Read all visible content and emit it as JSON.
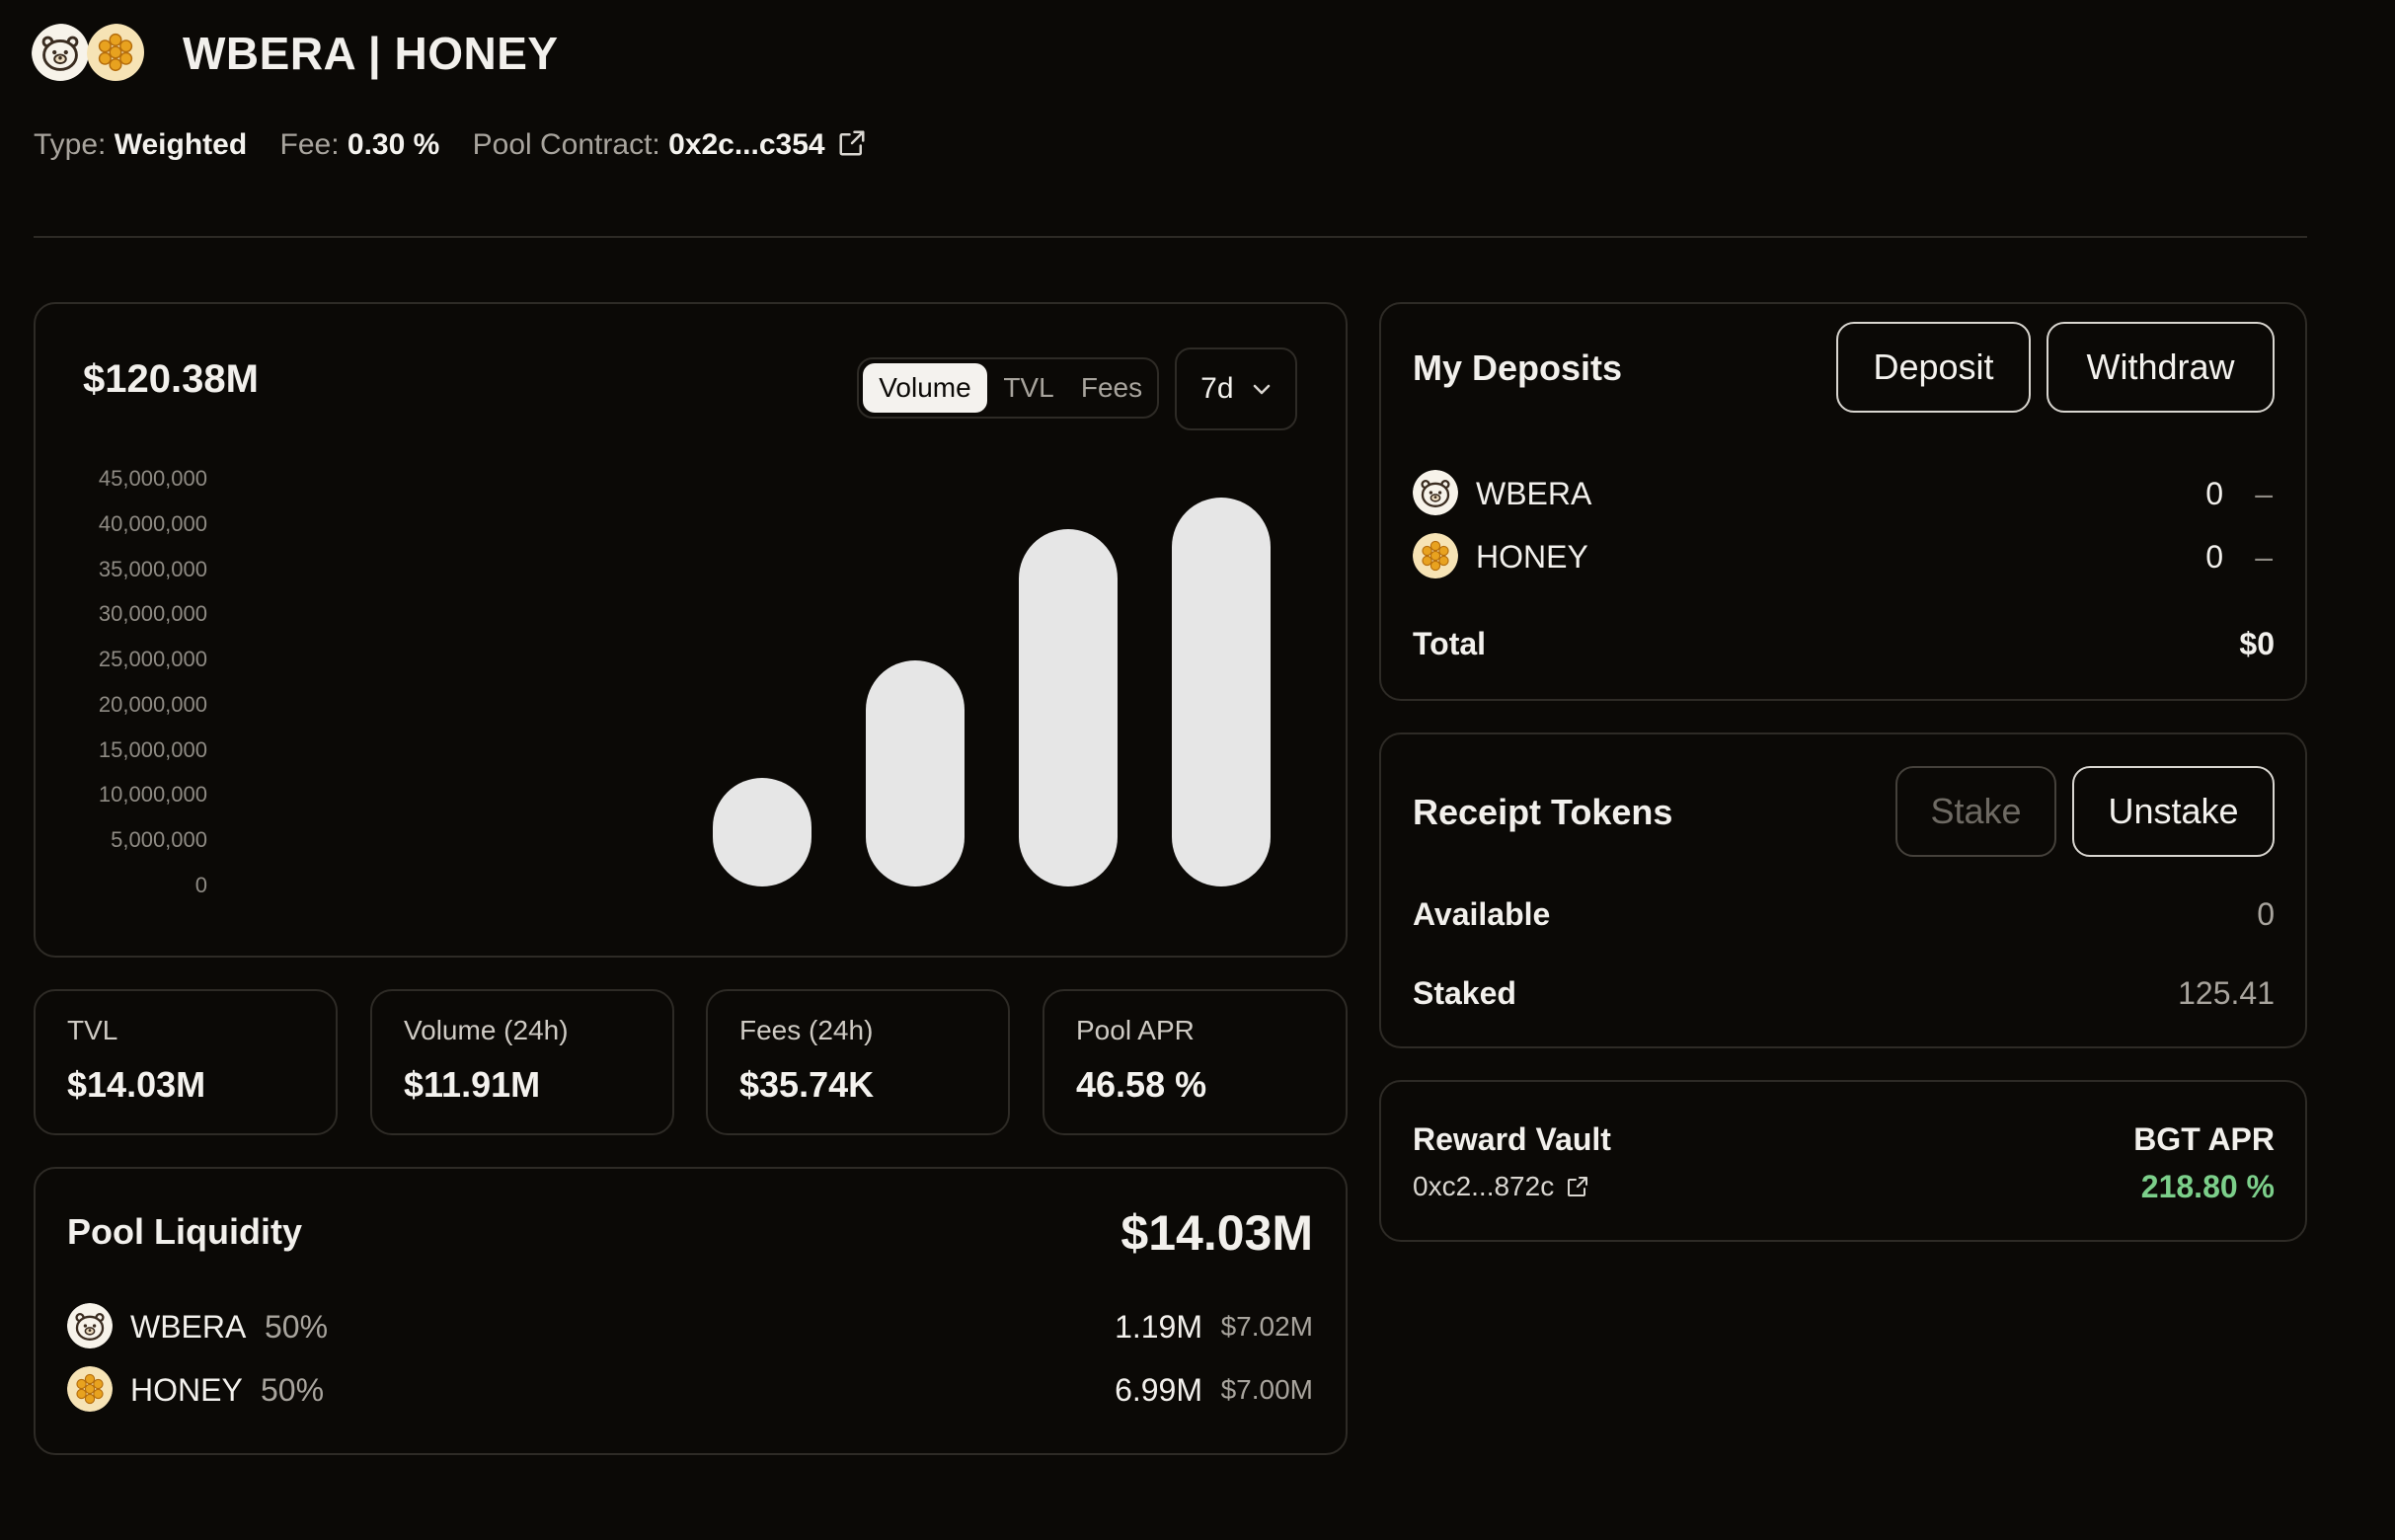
{
  "header": {
    "title": "WBERA | HONEY",
    "type_label": "Type:",
    "type_value": "Weighted",
    "fee_label": "Fee:",
    "fee_value": "0.30 %",
    "contract_label": "Pool Contract:",
    "contract_value": "0x2c...c354"
  },
  "chart": {
    "total": "$120.38M",
    "tabs": [
      {
        "label": "Volume",
        "active": true
      },
      {
        "label": "TVL",
        "active": false
      },
      {
        "label": "Fees",
        "active": false
      }
    ],
    "range": "7d"
  },
  "chart_data": {
    "type": "bar",
    "title": "",
    "xlabel": "",
    "ylabel": "",
    "ylim": [
      0,
      45000000
    ],
    "yticks": [
      "45,000,000",
      "40,000,000",
      "35,000,000",
      "30,000,000",
      "25,000,000",
      "20,000,000",
      "15,000,000",
      "10,000,000",
      "5,000,000",
      "0"
    ],
    "values": [
      12000000,
      25000000,
      39500000,
      43000000
    ],
    "grid": false,
    "legend": "none"
  },
  "stats": [
    {
      "label": "TVL",
      "value": "$14.03M"
    },
    {
      "label": "Volume (24h)",
      "value": "$11.91M"
    },
    {
      "label": "Fees (24h)",
      "value": "$35.74K"
    },
    {
      "label": "Pool APR",
      "value": "46.58 %"
    }
  ],
  "liquidity": {
    "title": "Pool Liquidity",
    "total": "$14.03M",
    "tokens": [
      {
        "symbol": "WBERA",
        "weight": "50%",
        "amount": "1.19M",
        "usd": "$7.02M",
        "icon": "bear-icon"
      },
      {
        "symbol": "HONEY",
        "weight": "50%",
        "amount": "6.99M",
        "usd": "$7.00M",
        "icon": "honeycomb-icon"
      }
    ]
  },
  "deposits": {
    "title": "My Deposits",
    "deposit_label": "Deposit",
    "withdraw_label": "Withdraw",
    "tokens": [
      {
        "symbol": "WBERA",
        "amount": "0",
        "usd": "–"
      },
      {
        "symbol": "HONEY",
        "amount": "0",
        "usd": "–"
      }
    ],
    "total_label": "Total",
    "total_value": "$0"
  },
  "receipt": {
    "title": "Receipt Tokens",
    "stake_label": "Stake",
    "unstake_label": "Unstake",
    "available_label": "Available",
    "available_value": "0",
    "staked_label": "Staked",
    "staked_value": "125.41"
  },
  "vault": {
    "title": "Reward Vault",
    "address": "0xc2...872c",
    "apr_label": "BGT APR",
    "apr_value": "218.80 %"
  },
  "colors": {
    "background": "#0b0906",
    "border": "#2e2b26",
    "bar": "#e6e6e6",
    "accent_green": "#7ccf8a",
    "honey": "#e8a21f"
  }
}
